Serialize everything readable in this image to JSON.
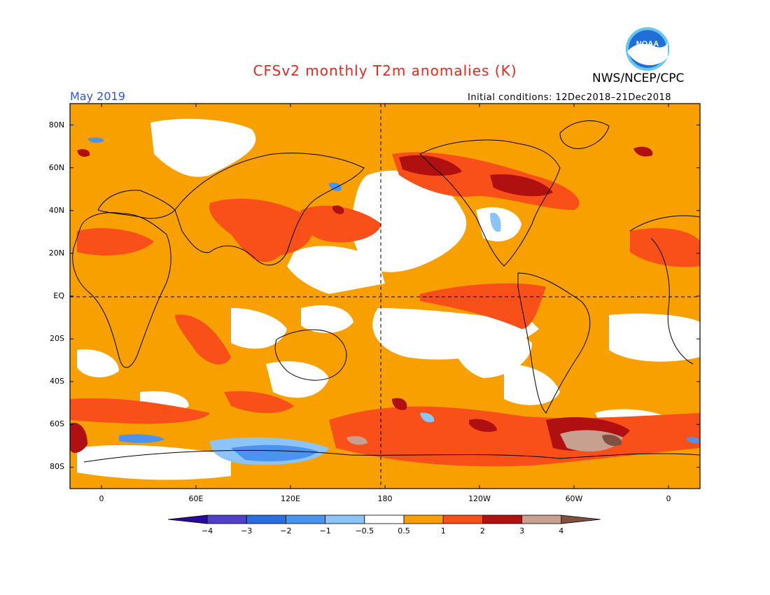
{
  "header": {
    "title": "CFSv2 monthly T2m anomalies (K)",
    "title_color": "#e8281c",
    "organization": "NWS/NCEP/CPC",
    "month": "May 2019",
    "month_color": "#2f54d6",
    "initial_conditions": "Initial conditions: 12Dec2018–21Dec2018"
  },
  "logo": {
    "icon": "noaa-logo",
    "text": "NOAA"
  },
  "map": {
    "projection": "equirectangular",
    "lon_range": [
      -20,
      380
    ],
    "lat_range": [
      -90,
      90
    ],
    "lat_labels": [
      "80N",
      "60N",
      "40N",
      "20N",
      "EQ",
      "20S",
      "40S",
      "60S",
      "80S"
    ],
    "lat_values": [
      80,
      60,
      40,
      20,
      0,
      -20,
      -40,
      -60,
      -80
    ],
    "lon_labels": [
      "0",
      "60E",
      "120E",
      "180",
      "120W",
      "60W",
      "0"
    ],
    "lon_values": [
      0,
      60,
      120,
      180,
      240,
      300,
      360
    ],
    "reference_lines": [
      "equator",
      "dateline"
    ]
  },
  "colorbar": {
    "colors": [
      "#2a0a9e",
      "#5040c8",
      "#2c6ee0",
      "#4a94f0",
      "#8cc4f8",
      "#ffffff",
      "#f8a000",
      "#f85018",
      "#b01010",
      "#c8a090",
      "#805040"
    ],
    "labels": [
      "−4",
      "−3",
      "−2",
      "−1",
      "−0.5",
      "0.5",
      "1",
      "2",
      "3",
      "4"
    ]
  }
}
